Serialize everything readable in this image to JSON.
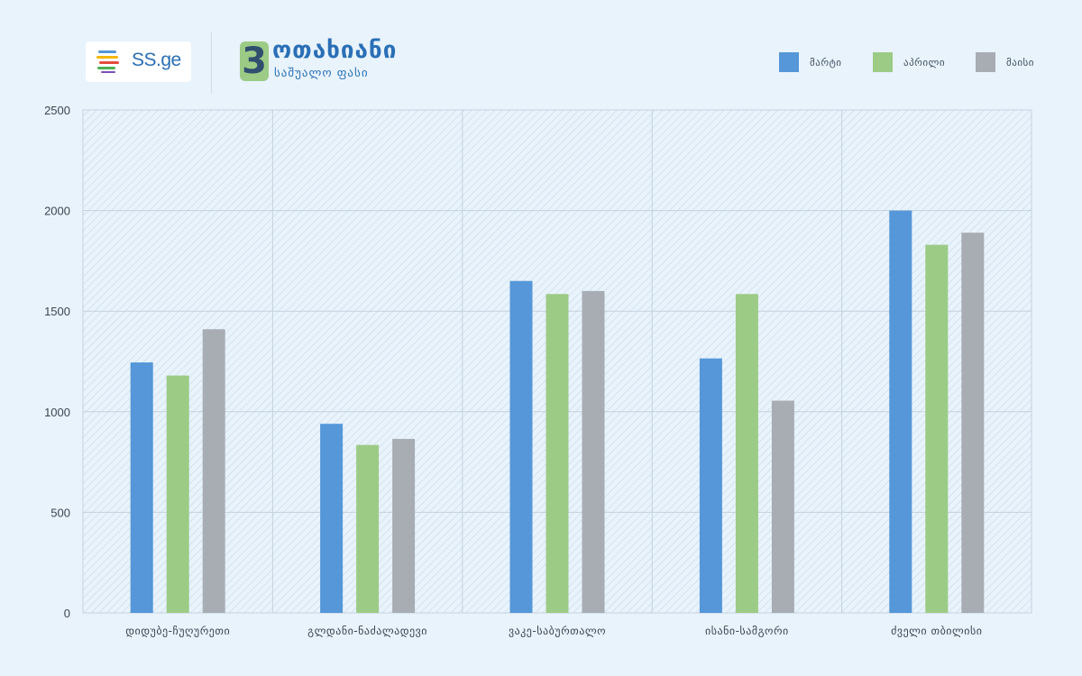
{
  "header": {
    "logo_text": "SS.ge",
    "rooms_number": "3",
    "title": "ოთახიანი",
    "subtitle": "საშუალო ფასი"
  },
  "colors": {
    "background": "#e8f3fc",
    "series": [
      "#5597d8",
      "#9ccb86",
      "#a8adb3"
    ]
  },
  "chart_data": {
    "type": "bar",
    "title": "",
    "xlabel": "",
    "ylabel": "",
    "ylim": [
      0,
      2500
    ],
    "yticks": [
      0,
      500,
      1000,
      1500,
      2000,
      2500
    ],
    "grid": true,
    "legend_position": "top-right",
    "categories": [
      "დიდუბე-ჩუღურეთი",
      "გლდანი-ნაძალადევი",
      "ვაკე-საბურთალო",
      "ისანი-სამგორი",
      "ძველი თბილისი"
    ],
    "series": [
      {
        "name": "მარტი",
        "color": "#5597d8",
        "values": [
          1245,
          940,
          1650,
          1265,
          2000
        ]
      },
      {
        "name": "აპრილი",
        "color": "#9ccb86",
        "values": [
          1180,
          835,
          1585,
          1585,
          1830
        ]
      },
      {
        "name": "მაისი",
        "color": "#a8adb3",
        "values": [
          1410,
          865,
          1600,
          1055,
          1890
        ]
      }
    ]
  }
}
